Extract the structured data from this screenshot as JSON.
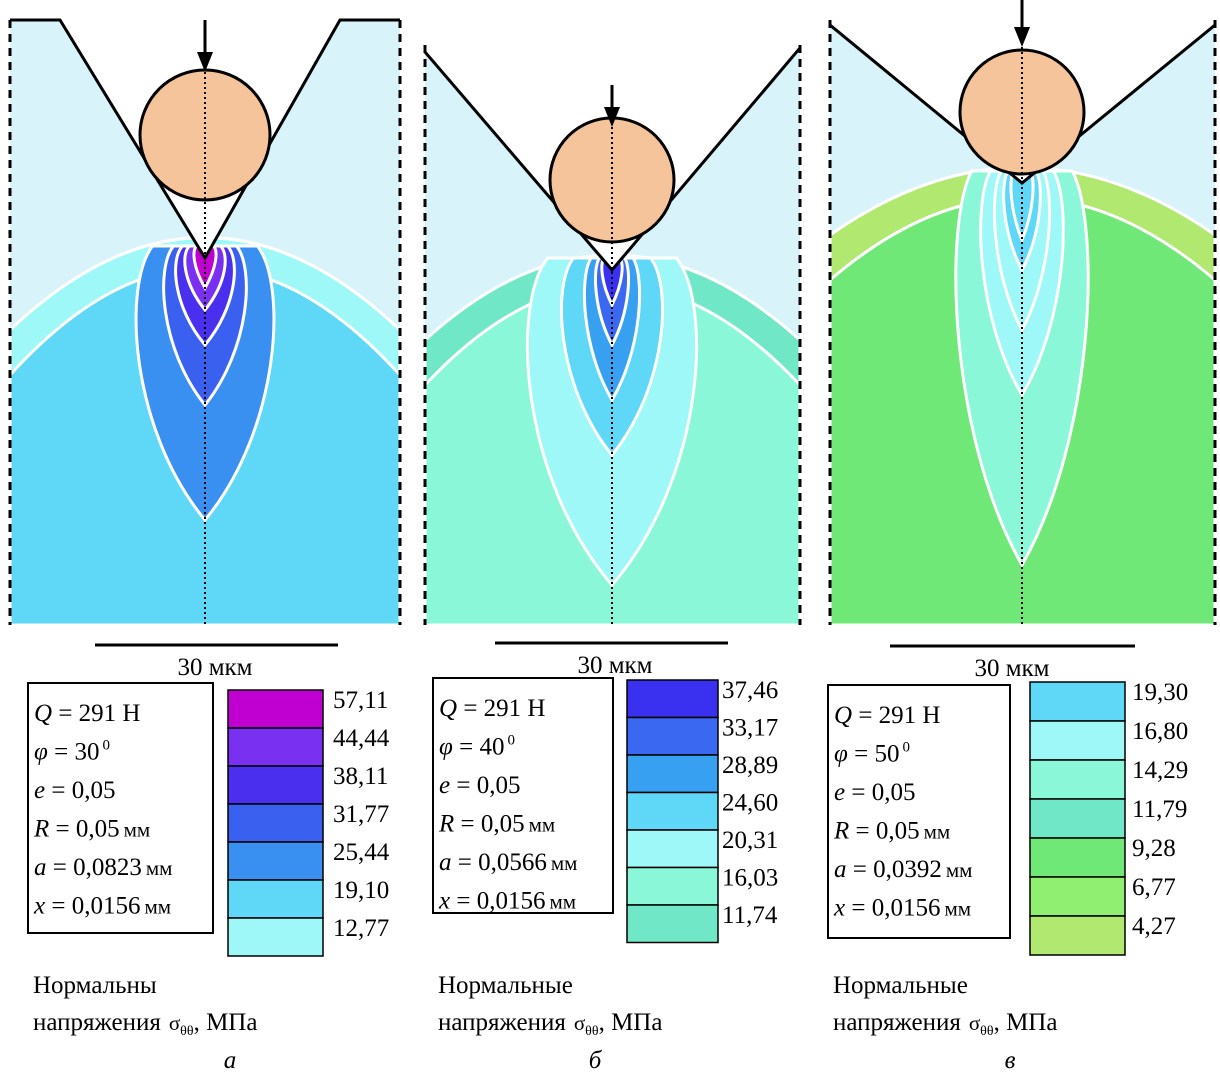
{
  "panels": [
    {
      "scale_label": "30 мкм",
      "params": [
        {
          "symbol": "Q",
          "text": " = 291 Н"
        },
        {
          "symbol": "φ",
          "text": " = 30",
          "sup": "0"
        },
        {
          "symbol": "e",
          "text": " = 0,05"
        },
        {
          "symbol": "R",
          "text": " = 0,05",
          "unit": "мм"
        },
        {
          "symbol": "a",
          "text": " = 0,0823",
          "unit": "мм"
        },
        {
          "symbol": "x",
          "text": " = 0,0156",
          "unit": "мм"
        }
      ],
      "legend": [
        {
          "label": "57,11",
          "color": "#c000d0"
        },
        {
          "label": "44,44",
          "color": "#7a30f0"
        },
        {
          "label": "38,11",
          "color": "#4a30ee"
        },
        {
          "label": "31,77",
          "color": "#3a60f0"
        },
        {
          "label": "25,44",
          "color": "#3a90f0"
        },
        {
          "label": "19,10",
          "color": "#5fd8f8"
        },
        {
          "label": "12,77",
          "color": "#9ff8f8"
        }
      ],
      "caption": {
        "line1": "Нормальны",
        "line2": "напряжения",
        "symbol": "σ",
        "subscript": "θθ",
        "unit": ", МПа"
      },
      "letter": "а"
    },
    {
      "scale_label": "30 мкм",
      "params": [
        {
          "symbol": "Q",
          "text": " = 291 Н"
        },
        {
          "symbol": "φ",
          "text": " = 40",
          "sup": "0"
        },
        {
          "symbol": "e",
          "text": " = 0,05"
        },
        {
          "symbol": "R",
          "text": " = 0,05",
          "unit": "мм"
        },
        {
          "symbol": "a",
          "text": " = 0,0566",
          "unit": "мм"
        },
        {
          "symbol": "x",
          "text": " = 0,0156",
          "unit": "мм"
        }
      ],
      "legend": [
        {
          "label": "37,46",
          "color": "#3a30f0"
        },
        {
          "label": "33,17",
          "color": "#3a68f0"
        },
        {
          "label": "28,89",
          "color": "#38a0f0"
        },
        {
          "label": "24,60",
          "color": "#5fd8f8"
        },
        {
          "label": "20,31",
          "color": "#9ff8f8"
        },
        {
          "label": "16,03",
          "color": "#8af8d8"
        },
        {
          "label": "11,74",
          "color": "#70e8c8"
        }
      ],
      "caption": {
        "line1": "Нормальные",
        "line2": "напряжения",
        "symbol": "σ",
        "subscript": "θθ",
        "unit": ", МПа"
      },
      "letter": "б"
    },
    {
      "scale_label": "30 мкм",
      "params": [
        {
          "symbol": "Q",
          "text": " = 291 Н"
        },
        {
          "symbol": "φ",
          "text": " = 50",
          "sup": "0"
        },
        {
          "symbol": "e",
          "text": " = 0,05"
        },
        {
          "symbol": "R",
          "text": " = 0,05",
          "unit": "мм"
        },
        {
          "symbol": "a",
          "text": " = 0,0392",
          "unit": "мм"
        },
        {
          "symbol": "x",
          "text": " = 0,0156",
          "unit": "мм"
        }
      ],
      "legend": [
        {
          "label": "19,30",
          "color": "#5fd8f8"
        },
        {
          "label": "16,80",
          "color": "#9ff8f8"
        },
        {
          "label": "14,29",
          "color": "#8af8d8"
        },
        {
          "label": "11,79",
          "color": "#70e8c8"
        },
        {
          "label": "9,28",
          "color": "#70e878"
        },
        {
          "label": "6,77",
          "color": "#90ee70"
        },
        {
          "label": "4,27",
          "color": "#b0e870"
        }
      ],
      "caption": {
        "line1": "Нормальные",
        "line2": "напряжения",
        "symbol": "σ",
        "subscript": "θθ",
        "unit": ", МПа"
      },
      "letter": "в"
    }
  ]
}
